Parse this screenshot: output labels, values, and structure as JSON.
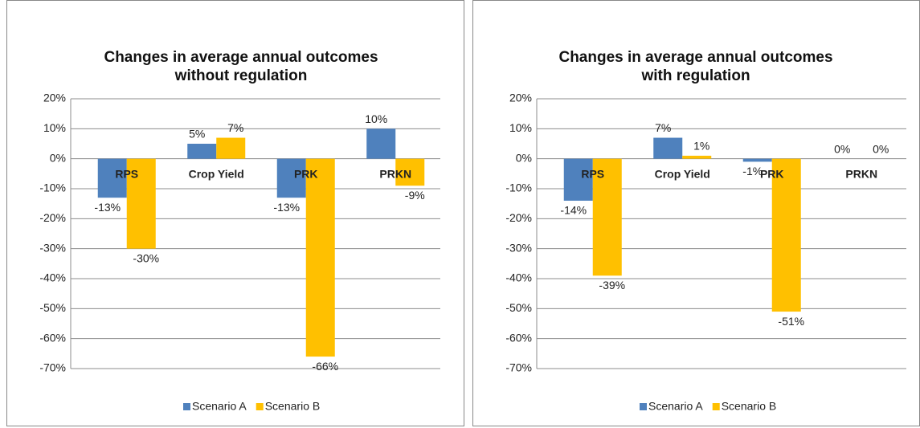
{
  "chart_data": [
    {
      "type": "bar",
      "title": "Changes in average annual outcomes without regulation",
      "categories": [
        "RPS",
        "Crop Yield",
        "PRK",
        "PRKN"
      ],
      "series": [
        {
          "name": "Scenario A",
          "color": "#4f81bd",
          "values": [
            -13,
            5,
            -13,
            10
          ],
          "value_labels": [
            "-13%",
            "5%",
            "-13%",
            "10%"
          ]
        },
        {
          "name": "Scenario B",
          "color": "#ffc000",
          "values": [
            -30,
            7,
            -66,
            -9
          ],
          "value_labels": [
            "-30%",
            "7%",
            "-66%",
            "-9%"
          ]
        }
      ],
      "ylim": [
        -70,
        20
      ],
      "yticks": [
        {
          "value": 20,
          "label": "20%"
        },
        {
          "value": 10,
          "label": "10%"
        },
        {
          "value": 0,
          "label": "0%"
        },
        {
          "value": -10,
          "label": "-10%"
        },
        {
          "value": -20,
          "label": "-20%"
        },
        {
          "value": -30,
          "label": "-30%"
        },
        {
          "value": -40,
          "label": "-40%"
        },
        {
          "value": -50,
          "label": "-50%"
        },
        {
          "value": -60,
          "label": "-60%"
        },
        {
          "value": -70,
          "label": "-70%"
        }
      ],
      "grid": true,
      "legend": "bottom"
    },
    {
      "type": "bar",
      "title": "Changes in average annual outcomes with regulation",
      "categories": [
        "RPS",
        "Crop Yield",
        "PRK",
        "PRKN"
      ],
      "series": [
        {
          "name": "Scenario A",
          "color": "#4f81bd",
          "values": [
            -14,
            7,
            -1,
            0
          ],
          "value_labels": [
            "-14%",
            "7%",
            "-1%",
            "0%"
          ]
        },
        {
          "name": "Scenario B",
          "color": "#ffc000",
          "values": [
            -39,
            1,
            -51,
            0
          ],
          "value_labels": [
            "-39%",
            "1%",
            "-51%",
            "0%"
          ]
        }
      ],
      "ylim": [
        -70,
        20
      ],
      "yticks": [
        {
          "value": 20,
          "label": "20%"
        },
        {
          "value": 10,
          "label": "10%"
        },
        {
          "value": 0,
          "label": "0%"
        },
        {
          "value": -10,
          "label": "-10%"
        },
        {
          "value": -20,
          "label": "-20%"
        },
        {
          "value": -30,
          "label": "-30%"
        },
        {
          "value": -40,
          "label": "-40%"
        },
        {
          "value": -50,
          "label": "-50%"
        },
        {
          "value": -60,
          "label": "-60%"
        },
        {
          "value": -70,
          "label": "-70%"
        }
      ],
      "grid": true,
      "legend": "bottom"
    }
  ]
}
